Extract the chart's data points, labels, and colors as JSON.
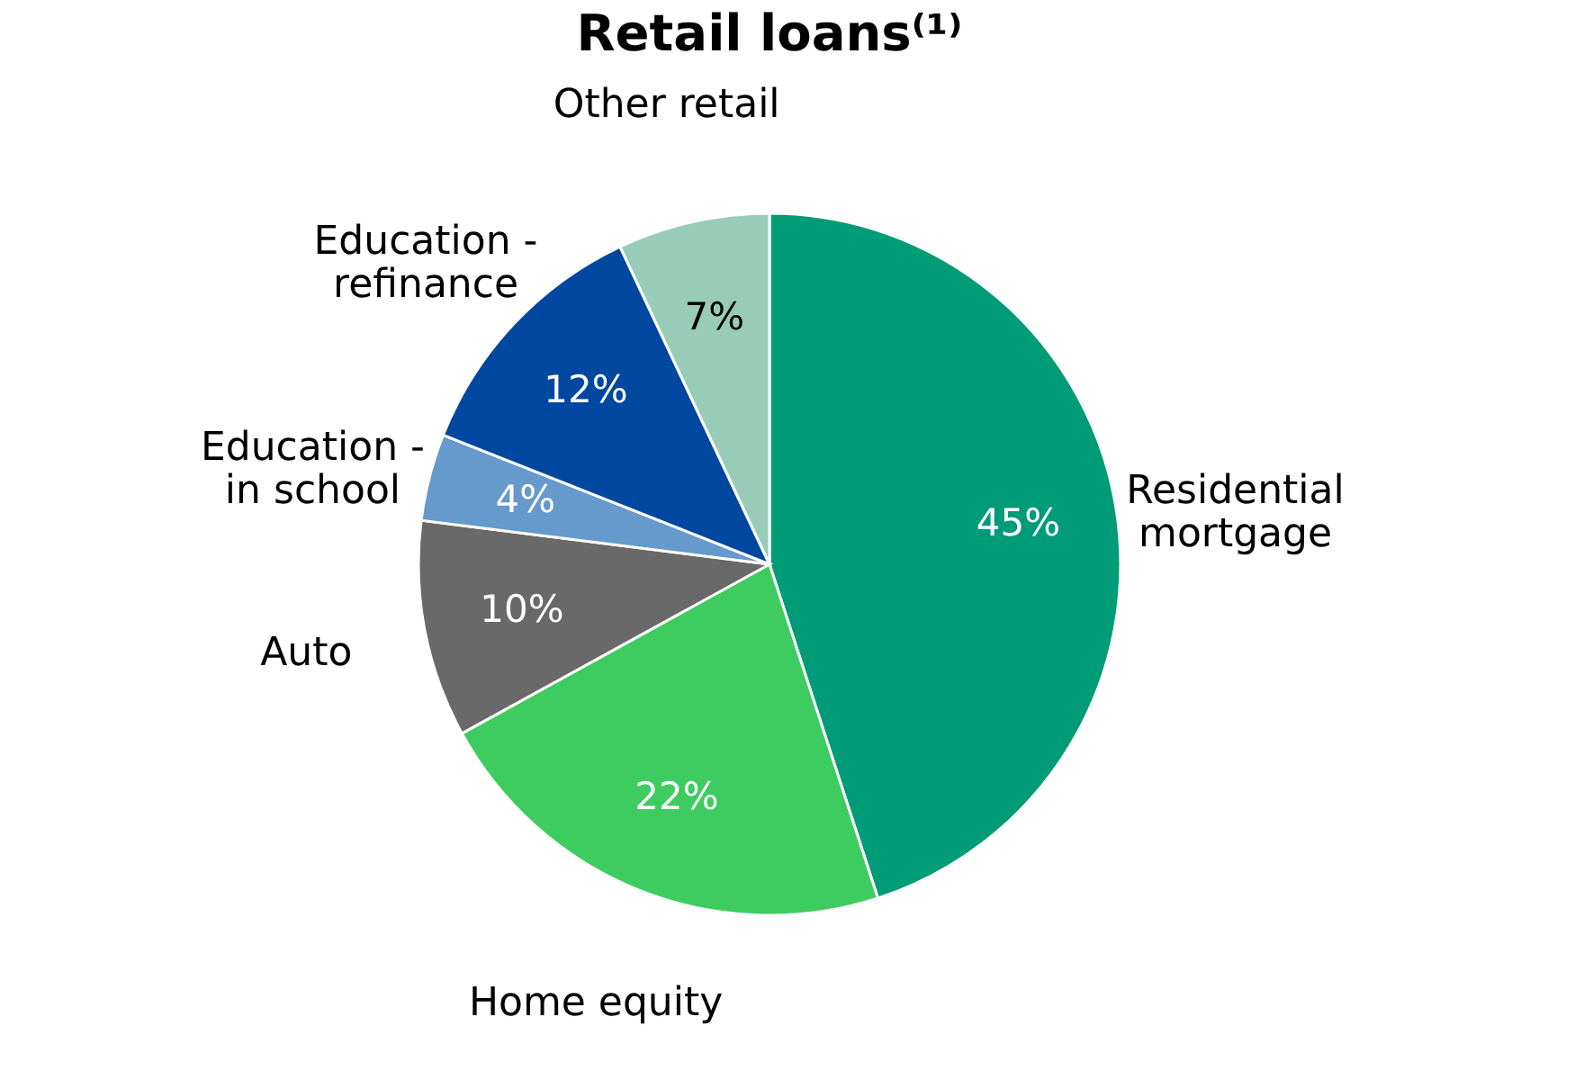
{
  "chart_data": {
    "type": "pie",
    "title": "Retail loans⁽¹⁾",
    "categories": [
      "Residential mortgage",
      "Home equity",
      "Auto",
      "Education - in school",
      "Education - refinance",
      "Other retail"
    ],
    "values": [
      45,
      22,
      10,
      4,
      12,
      7
    ],
    "colors": [
      "#009b77",
      "#3ecc60",
      "#696969",
      "#6699cc",
      "#0047a0",
      "#99ccb8"
    ],
    "value_labels": [
      "45%",
      "22%",
      "10%",
      "4%",
      "12%",
      "7%"
    ],
    "legend": false
  }
}
